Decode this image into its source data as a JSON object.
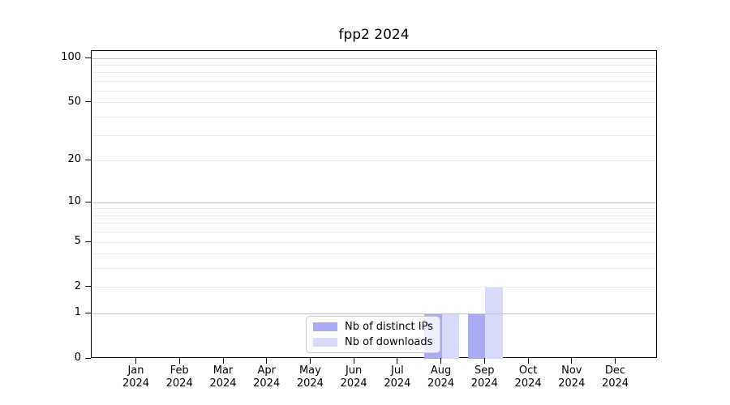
{
  "chart_data": {
    "type": "bar",
    "title": "fpp2 2024",
    "categories": [
      "Jan",
      "Feb",
      "Mar",
      "Apr",
      "May",
      "Jun",
      "Jul",
      "Aug",
      "Sep",
      "Oct",
      "Nov",
      "Dec"
    ],
    "year_label": "2024",
    "series": [
      {
        "name": "Nb of distinct IPs",
        "color": "#a9aaf2",
        "values": [
          0,
          0,
          0,
          0,
          0,
          0,
          0,
          1,
          1,
          0,
          0,
          0
        ]
      },
      {
        "name": "Nb of downloads",
        "color": "#d8daf9",
        "values": [
          0,
          0,
          0,
          0,
          0,
          0,
          0,
          1,
          2,
          0,
          0,
          0
        ]
      }
    ],
    "xlabel": "",
    "ylabel": "",
    "yscale": "log1p",
    "ylim": [
      0,
      112
    ],
    "yticks": [
      0,
      1,
      2,
      5,
      10,
      20,
      50,
      100
    ],
    "grid": {
      "major_values": [
        1,
        10,
        100
      ],
      "minor_values": [
        2,
        3,
        4,
        5,
        6,
        7,
        8,
        9,
        20,
        30,
        40,
        50,
        60,
        70,
        80,
        90
      ],
      "major_color": "#c4c4c4",
      "minor_color": "#ebebeb"
    },
    "legend": {
      "position": "lower center",
      "items": [
        "Nb of distinct IPs",
        "Nb of downloads"
      ]
    },
    "axis_color": "#000000",
    "background_color": "#ffffff"
  }
}
